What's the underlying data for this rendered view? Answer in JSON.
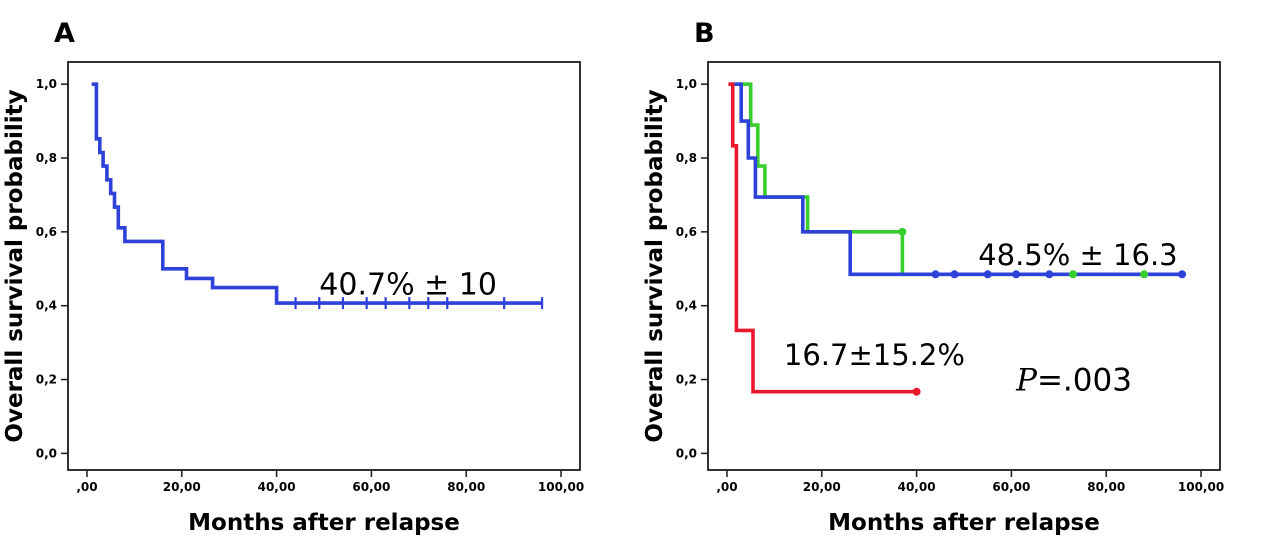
{
  "figure": {
    "background": "#ffffff"
  },
  "colors": {
    "blue": "#2E41D9",
    "green": "#38CF2E",
    "red": "#E9182C",
    "panel_label": "#0B8286",
    "axis": "#1a1a1a",
    "annotation": "#000000"
  },
  "chart_data": [
    {
      "type": "line",
      "subtype": "kaplan_meier_step",
      "panel_label": "A",
      "title": "",
      "xlabel": "Months after relapse",
      "ylabel": "Overall survival probability",
      "xlim": [
        -4,
        104
      ],
      "ylim": [
        -0.045,
        1.06
      ],
      "grid": false,
      "legend": null,
      "xticks": [
        {
          "v": 0,
          "label": ",00"
        },
        {
          "v": 20,
          "label": "20,00"
        },
        {
          "v": 40,
          "label": "40,00"
        },
        {
          "v": 60,
          "label": "60,00"
        },
        {
          "v": 80,
          "label": "80,00"
        },
        {
          "v": 100,
          "label": "100,00"
        }
      ],
      "yticks": [
        {
          "v": 0.0,
          "label": "0,0"
        },
        {
          "v": 0.2,
          "label": "0,2"
        },
        {
          "v": 0.4,
          "label": "0,4"
        },
        {
          "v": 0.6,
          "label": "0,6"
        },
        {
          "v": 0.8,
          "label": "0,8"
        },
        {
          "v": 1.0,
          "label": "1,0"
        }
      ],
      "series": [
        {
          "name": "overall-survival",
          "color": "blue",
          "points": [
            [
              1,
              1.0
            ],
            [
              2,
              0.852
            ],
            [
              2.7,
              0.815
            ],
            [
              3.4,
              0.778
            ],
            [
              4.2,
              0.741
            ],
            [
              5,
              0.704
            ],
            [
              5.8,
              0.667
            ],
            [
              6.6,
              0.611
            ],
            [
              8,
              0.574
            ],
            [
              16,
              0.5
            ],
            [
              21,
              0.474
            ],
            [
              26.5,
              0.449
            ],
            [
              40,
              0.407
            ]
          ],
          "end_x": 96,
          "censor_style": "tick",
          "censors": [
            [
              44,
              0.407
            ],
            [
              49,
              0.407
            ],
            [
              54,
              0.407
            ],
            [
              59,
              0.407
            ],
            [
              63,
              0.407
            ],
            [
              68,
              0.407
            ],
            [
              72,
              0.407
            ],
            [
              76,
              0.407
            ],
            [
              88,
              0.407
            ],
            [
              96,
              0.407
            ]
          ]
        }
      ],
      "annotations": [
        {
          "x": 49,
          "y": 0.43,
          "font_size": 30,
          "parts": [
            {
              "text": "40.7% ± 10"
            }
          ]
        }
      ]
    },
    {
      "type": "line",
      "subtype": "kaplan_meier_step",
      "panel_label": "B",
      "title": "",
      "xlabel": "Months after relapse",
      "ylabel": "Overall survival probability",
      "xlim": [
        -4,
        104
      ],
      "ylim": [
        -0.045,
        1.06
      ],
      "grid": false,
      "legend": null,
      "xticks": [
        {
          "v": 0,
          "label": ",00"
        },
        {
          "v": 20,
          "label": "20,00"
        },
        {
          "v": 40,
          "label": "40,00"
        },
        {
          "v": 60,
          "label": "60,00"
        },
        {
          "v": 80,
          "label": "80,00"
        },
        {
          "v": 100,
          "label": "100,00"
        }
      ],
      "yticks": [
        {
          "v": 0.0,
          "label": "0,0"
        },
        {
          "v": 0.2,
          "label": "0,2"
        },
        {
          "v": 0.4,
          "label": "0,4"
        },
        {
          "v": 0.6,
          "label": "0,6"
        },
        {
          "v": 0.8,
          "label": "0,8"
        },
        {
          "v": 1.0,
          "label": "1,0"
        }
      ],
      "series": [
        {
          "name": "group-green",
          "color": "green",
          "points": [
            [
              2,
              1.0
            ],
            [
              5,
              0.889
            ],
            [
              6.5,
              0.778
            ],
            [
              8,
              0.694
            ],
            [
              17,
              0.6
            ],
            [
              37,
              0.485
            ]
          ],
          "end_x": 88,
          "censor_style": "dot",
          "censors": [
            [
              37,
              0.6
            ],
            [
              73,
              0.485
            ],
            [
              88,
              0.485
            ]
          ]
        },
        {
          "name": "group-blue",
          "color": "blue",
          "points": [
            [
              0.5,
              1.0
            ],
            [
              3,
              0.9
            ],
            [
              4.5,
              0.8
            ],
            [
              6,
              0.694
            ],
            [
              16,
              0.6
            ],
            [
              26,
              0.485
            ]
          ],
          "end_x": 96,
          "censor_style": "dot",
          "censors": [
            [
              44,
              0.485
            ],
            [
              48,
              0.485
            ],
            [
              55,
              0.485
            ],
            [
              61,
              0.485
            ],
            [
              68,
              0.485
            ],
            [
              96,
              0.485
            ]
          ]
        },
        {
          "name": "group-red",
          "color": "red",
          "points": [
            [
              0.3,
              1.0
            ],
            [
              1.2,
              0.833
            ],
            [
              2,
              0.333
            ],
            [
              5.5,
              0.167
            ]
          ],
          "end_x": 40,
          "censor_style": "dot",
          "censors": [
            [
              40,
              0.167
            ]
          ]
        }
      ],
      "annotations": [
        {
          "x": 53,
          "y": 0.51,
          "font_size": 29,
          "parts": [
            {
              "text": "48.5% ± 16.3"
            }
          ]
        },
        {
          "x": 12,
          "y": 0.24,
          "font_size": 29,
          "parts": [
            {
              "text": "16.7±15.2%"
            }
          ]
        },
        {
          "x": 61,
          "y": 0.17,
          "font_size": 31,
          "parts": [
            {
              "text": "P",
              "italic": true
            },
            {
              "text": "=.003"
            }
          ]
        }
      ]
    }
  ]
}
